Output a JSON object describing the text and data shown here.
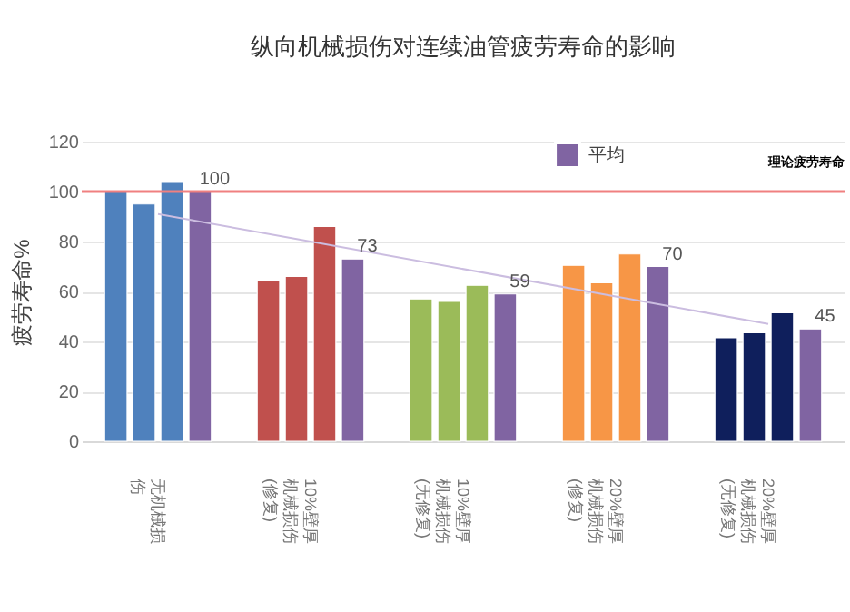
{
  "chart_data": {
    "type": "bar",
    "title": "纵向机械损伤对连续油管疲劳寿命的影响",
    "ylabel": "疲劳寿命%",
    "categories": [
      "无机械损伤",
      "10%壁厚机械损伤(修复)",
      "10%壁厚机械损伤(无修复)",
      "20%壁厚机械损伤(修复)",
      "20%壁厚机械损伤(无修复)"
    ],
    "series": [
      {
        "colors": [
          "#4f81bd",
          "#c0504d",
          "#9bbb59",
          "#f79646",
          "#0f1f5c"
        ],
        "values": [
          100,
          64.5,
          57,
          70.5,
          41.5
        ]
      },
      {
        "colors": [
          "#4f81bd",
          "#c0504d",
          "#9bbb59",
          "#f79646",
          "#0f1f5c"
        ],
        "values": [
          95,
          66,
          56,
          63.5,
          43.5
        ]
      },
      {
        "colors": [
          "#4f81bd",
          "#c0504d",
          "#9bbb59",
          "#f79646",
          "#0f1f5c"
        ],
        "values": [
          104,
          86,
          62.5,
          75,
          51.5
        ]
      },
      {
        "name": "平均",
        "color": "#8064a2",
        "values": [
          100,
          73,
          59,
          70,
          45
        ],
        "value_labels": [
          "100",
          "73",
          "59",
          "70",
          "45"
        ]
      },
      {
        "type": "line",
        "color": "#cbbde0",
        "x": [
          "无机械损伤",
          "20%壁厚机械损伤(无修复)"
        ],
        "values": [
          91,
          47
        ]
      }
    ],
    "ylim": [
      0,
      120
    ],
    "yticks": [
      0,
      20,
      40,
      60,
      80,
      100,
      120
    ],
    "grid": "y",
    "legend": "top right",
    "ref_lines": [
      {
        "axis": "y",
        "value": 100,
        "label": "理论疲劳寿命",
        "color": "#f08080"
      }
    ]
  }
}
